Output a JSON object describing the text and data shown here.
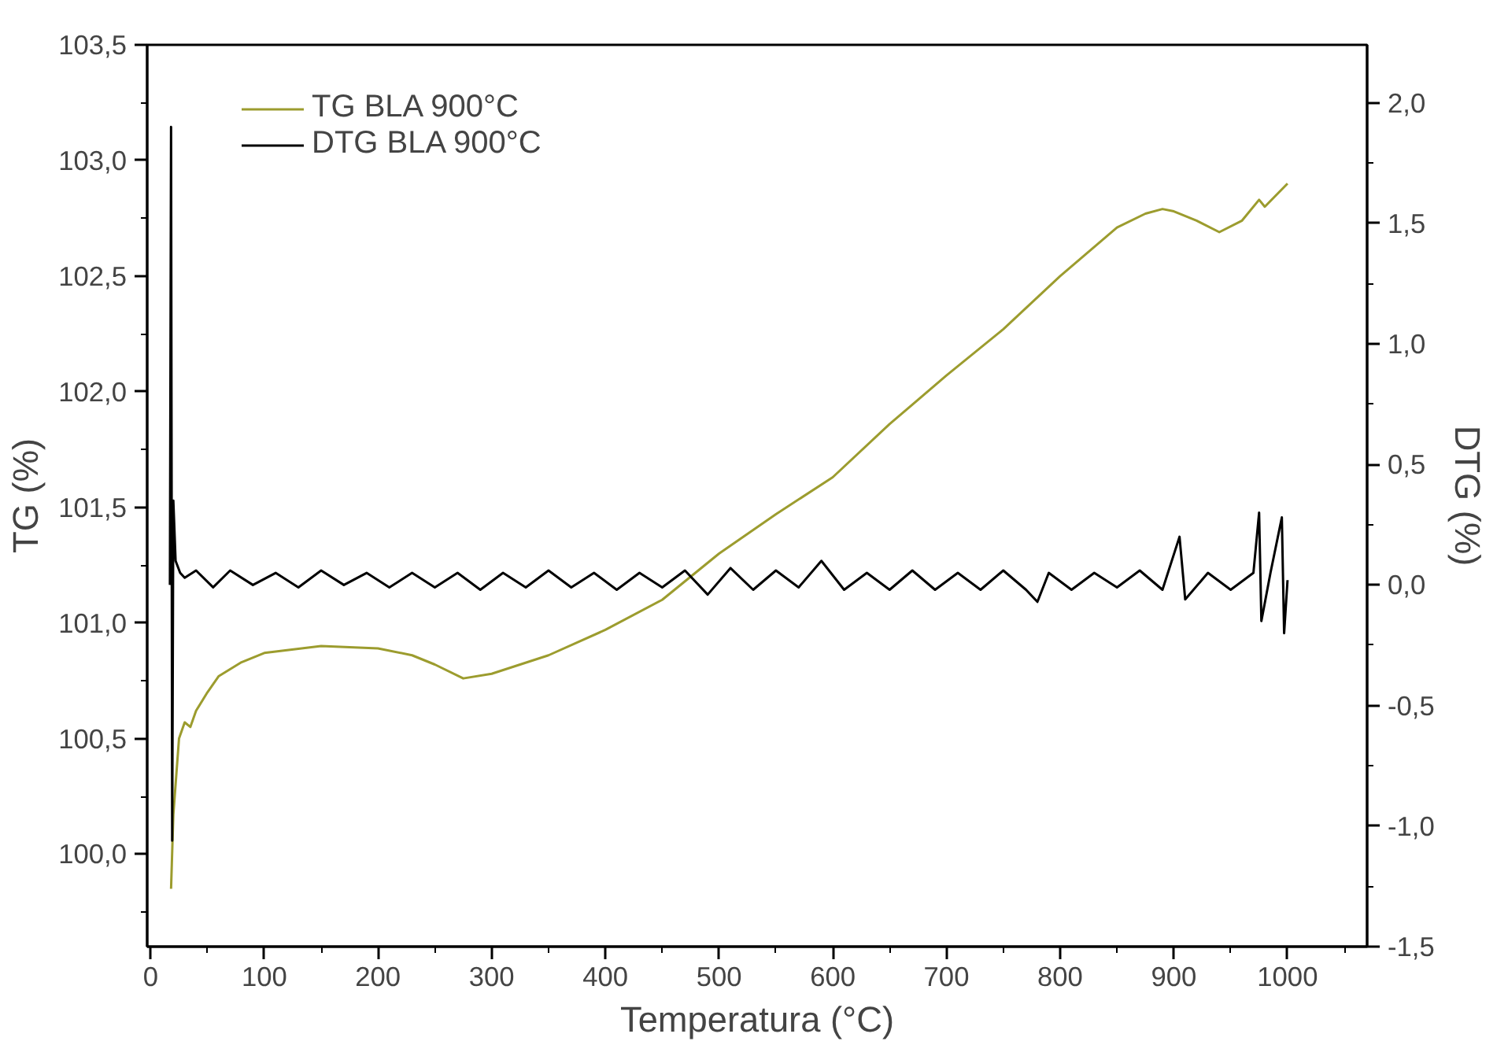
{
  "chart_data": {
    "type": "line",
    "xlabel": "Temperatura (°C)",
    "ylabel": "TG (%)",
    "y2label": "DTG (%)",
    "xlim": [
      -3,
      1070
    ],
    "ylim": [
      99.6,
      103.5
    ],
    "y2lim": [
      -1.5,
      2.24
    ],
    "xticks": [
      0,
      {
        "value": 50,
        "label": null
      },
      100,
      {
        "value": 150,
        "label": null
      },
      200,
      {
        "value": 250,
        "label": null
      },
      300,
      {
        "value": 350,
        "label": null
      },
      400,
      {
        "value": 450,
        "label": null
      },
      500,
      {
        "value": 550,
        "label": null
      },
      600,
      {
        "value": 650,
        "label": null
      },
      700,
      {
        "value": 750,
        "label": null
      },
      800,
      {
        "value": 850,
        "label": null
      },
      900,
      {
        "value": 950,
        "label": null
      },
      1000,
      {
        "value": 1050,
        "label": null
      }
    ],
    "yticks": [
      {
        "value": 100.0,
        "label": "100,0"
      },
      {
        "value": 100.25,
        "label": null
      },
      {
        "value": 100.5,
        "label": "100,5"
      },
      {
        "value": 100.75,
        "label": null
      },
      {
        "value": 101.0,
        "label": "101,0"
      },
      {
        "value": 101.25,
        "label": null
      },
      {
        "value": 101.5,
        "label": "101,5"
      },
      {
        "value": 101.75,
        "label": null
      },
      {
        "value": 102.0,
        "label": "102,0"
      },
      {
        "value": 102.25,
        "label": null
      },
      {
        "value": 102.5,
        "label": "102,5"
      },
      {
        "value": 102.75,
        "label": null
      },
      {
        "value": 103.0,
        "label": "103,0"
      },
      {
        "value": 103.25,
        "label": null
      },
      {
        "value": 103.5,
        "label": "103,5"
      },
      {
        "value": 99.75,
        "label": null
      }
    ],
    "y2ticks": [
      {
        "value": -1.5,
        "label": "-1,5"
      },
      {
        "value": -1.25,
        "label": null
      },
      {
        "value": -1.0,
        "label": "-1,0"
      },
      {
        "value": -0.75,
        "label": null
      },
      {
        "value": -0.5,
        "label": "-0,5"
      },
      {
        "value": -0.25,
        "label": null
      },
      {
        "value": 0.0,
        "label": "0,0"
      },
      {
        "value": 0.25,
        "label": null
      },
      {
        "value": 0.5,
        "label": "0,5"
      },
      {
        "value": 0.75,
        "label": null
      },
      {
        "value": 1.0,
        "label": "1,0"
      },
      {
        "value": 1.25,
        "label": null
      },
      {
        "value": 1.5,
        "label": "1,5"
      },
      {
        "value": 1.75,
        "label": null
      },
      {
        "value": 2.0,
        "label": "2,0"
      }
    ],
    "grid": false,
    "legend": "top left",
    "line_style": "solid",
    "marker": "none",
    "series": [
      {
        "name": "TG BLA 900°C",
        "color": "#9c9c2e",
        "x": [
          18,
          20,
          25,
          30,
          35,
          40,
          50,
          60,
          80,
          100,
          150,
          200,
          230,
          250,
          275,
          300,
          350,
          400,
          450,
          500,
          550,
          600,
          650,
          700,
          750,
          800,
          850,
          875,
          890,
          900,
          920,
          940,
          960,
          975,
          980,
          1000
        ],
        "values": [
          99.85,
          100.17,
          100.5,
          100.57,
          100.55,
          100.62,
          100.7,
          100.77,
          100.83,
          100.87,
          100.9,
          100.89,
          100.86,
          100.82,
          100.76,
          100.78,
          100.86,
          100.97,
          101.1,
          101.3,
          101.47,
          101.63,
          101.86,
          102.07,
          102.27,
          102.5,
          102.71,
          102.77,
          102.79,
          102.78,
          102.74,
          102.69,
          102.74,
          102.83,
          102.8,
          102.9
        ]
      },
      {
        "name": "DTG BLA 900°C",
        "color": "#000000",
        "axis": "y2",
        "x": [
          17,
          18,
          19,
          20,
          22,
          26,
          30,
          40,
          55,
          70,
          90,
          110,
          130,
          150,
          170,
          190,
          210,
          230,
          250,
          270,
          290,
          310,
          330,
          350,
          370,
          390,
          410,
          430,
          450,
          470,
          490,
          510,
          530,
          550,
          570,
          590,
          610,
          630,
          650,
          670,
          690,
          710,
          730,
          750,
          770,
          780,
          790,
          810,
          830,
          850,
          870,
          890,
          905,
          910,
          930,
          950,
          970,
          975,
          977,
          985,
          995,
          997,
          1000
        ],
        "values": [
          0.0,
          1.9,
          -1.06,
          0.35,
          0.1,
          0.05,
          0.03,
          0.06,
          -0.01,
          0.06,
          0.0,
          0.05,
          -0.01,
          0.06,
          0.0,
          0.05,
          -0.01,
          0.05,
          -0.01,
          0.05,
          -0.02,
          0.05,
          -0.01,
          0.06,
          -0.01,
          0.05,
          -0.02,
          0.05,
          -0.01,
          0.06,
          -0.04,
          0.07,
          -0.02,
          0.06,
          -0.01,
          0.1,
          -0.02,
          0.05,
          -0.02,
          0.06,
          -0.02,
          0.05,
          -0.02,
          0.06,
          -0.02,
          -0.07,
          0.05,
          -0.02,
          0.05,
          -0.01,
          0.06,
          -0.02,
          0.2,
          -0.06,
          0.05,
          -0.02,
          0.05,
          0.3,
          -0.15,
          0.05,
          0.28,
          -0.2,
          0.02
        ]
      }
    ]
  }
}
